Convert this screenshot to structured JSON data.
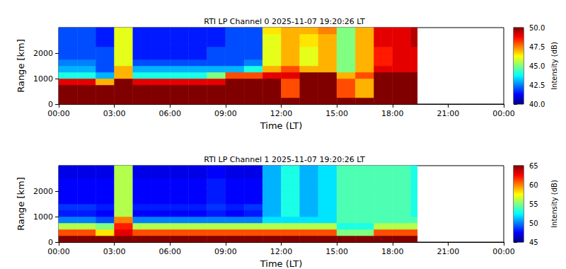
{
  "chart_data": [
    {
      "type": "heatmap",
      "title": "RTI LP Channel 0 2025-11-07 19:20:26 LT",
      "x_label": "Time (LT)",
      "y_label": "Range [km]",
      "xlim": [
        0,
        24
      ],
      "xticks": [
        {
          "value": 0,
          "label": "00:00"
        },
        {
          "value": 3,
          "label": "03:00"
        },
        {
          "value": 6,
          "label": "06:00"
        },
        {
          "value": 9,
          "label": "09:00"
        },
        {
          "value": 12,
          "label": "12:00"
        },
        {
          "value": 15,
          "label": "15:00"
        },
        {
          "value": 18,
          "label": "18:00"
        },
        {
          "value": 21,
          "label": "21:00"
        },
        {
          "value": 24,
          "label": "00:00"
        }
      ],
      "ylim": [
        0,
        3000
      ],
      "yticks": [
        0,
        1000,
        2000
      ],
      "time_edges": [
        0,
        1,
        2,
        3,
        4,
        5,
        6,
        7,
        8,
        9,
        10,
        11,
        12,
        13,
        14,
        15,
        16,
        17,
        18,
        19,
        19.34
      ],
      "range_edges": [
        0,
        250,
        500,
        750,
        1000,
        1250,
        1500,
        1750,
        2000,
        2250,
        2500,
        2750,
        3000
      ],
      "cells": [
        [
          52,
          52,
          52,
          52,
          52,
          52,
          52,
          52,
          52,
          52,
          52,
          52,
          52,
          52,
          52,
          52,
          52,
          52,
          52,
          52
        ],
        [
          52,
          52,
          52,
          52,
          52,
          52,
          52,
          52,
          52,
          52,
          52,
          52,
          48,
          52,
          52,
          48,
          47,
          52,
          52,
          52
        ],
        [
          52,
          52,
          52,
          52,
          52,
          52,
          52,
          52,
          52,
          52,
          52,
          52,
          48,
          52,
          52,
          48,
          47,
          52,
          52,
          52
        ],
        [
          49,
          49,
          47,
          51,
          49,
          49,
          49,
          49,
          49,
          51,
          52,
          52,
          48,
          52,
          52,
          48,
          47,
          52,
          52,
          52
        ],
        [
          44,
          44,
          43,
          47,
          44,
          44,
          44,
          44,
          45,
          48,
          48,
          49,
          49,
          51,
          51,
          47,
          48,
          52,
          52,
          52
        ],
        [
          43,
          43,
          42,
          47,
          43,
          43,
          43,
          43,
          43,
          43,
          44,
          47,
          48,
          47,
          47,
          45,
          47,
          49,
          49,
          49
        ],
        [
          42.5,
          42.5,
          42,
          46,
          42,
          42,
          42,
          42,
          42,
          42,
          42.5,
          46,
          47,
          46,
          47,
          45,
          47,
          48.5,
          49,
          49
        ],
        [
          42,
          42,
          42,
          46,
          41.5,
          41.5,
          41.5,
          41.5,
          42,
          42,
          42,
          46,
          47,
          46,
          47,
          45,
          47,
          48.5,
          49,
          49
        ],
        [
          42,
          42,
          42,
          46,
          41.5,
          41.5,
          41.5,
          41.5,
          42,
          42,
          42,
          46,
          47,
          46,
          47,
          45,
          47,
          48.5,
          49,
          49
        ],
        [
          42,
          42,
          41.5,
          46,
          41.5,
          41.5,
          41.5,
          41.5,
          41.5,
          42,
          42,
          46,
          47,
          46.5,
          47,
          45,
          47,
          49,
          49,
          49.5
        ],
        [
          42,
          42,
          41.5,
          46,
          41.5,
          41.5,
          41.5,
          41.5,
          41.5,
          42,
          42,
          46,
          47,
          46.5,
          47,
          45,
          47,
          49,
          49,
          49.5
        ],
        [
          42,
          42,
          41.5,
          46,
          41.5,
          41.5,
          41.5,
          41.5,
          41.5,
          42,
          42,
          46.5,
          47,
          47,
          47.5,
          45,
          47,
          49,
          49,
          49.5
        ]
      ],
      "colorbar": {
        "label": "Intensity (dB)",
        "lim": [
          40,
          50
        ],
        "ticks": [
          {
            "value": 40,
            "label": "40.0"
          },
          {
            "value": 42.5,
            "label": "42.5"
          },
          {
            "value": 45,
            "label": "45.0"
          },
          {
            "value": 47.5,
            "label": "47.5"
          },
          {
            "value": 50,
            "label": "50.0"
          }
        ]
      }
    },
    {
      "type": "heatmap",
      "title": "RTI LP Channel 1 2025-11-07 19:20:26 LT",
      "x_label": "Time (LT)",
      "y_label": "Range [km]",
      "xlim": [
        0,
        24
      ],
      "xticks": [
        {
          "value": 0,
          "label": "00:00"
        },
        {
          "value": 3,
          "label": "03:00"
        },
        {
          "value": 6,
          "label": "06:00"
        },
        {
          "value": 9,
          "label": "09:00"
        },
        {
          "value": 12,
          "label": "12:00"
        },
        {
          "value": 15,
          "label": "15:00"
        },
        {
          "value": 18,
          "label": "18:00"
        },
        {
          "value": 21,
          "label": "21:00"
        },
        {
          "value": 24,
          "label": "00:00"
        }
      ],
      "ylim": [
        0,
        3000
      ],
      "yticks": [
        0,
        1000,
        2000
      ],
      "time_edges": [
        0,
        1,
        2,
        3,
        4,
        5,
        6,
        7,
        8,
        9,
        10,
        11,
        12,
        13,
        14,
        15,
        16,
        17,
        18,
        19,
        19.34
      ],
      "range_edges": [
        0,
        250,
        500,
        750,
        1000,
        1250,
        1500,
        1750,
        2000,
        2250,
        2500,
        2750,
        3000
      ],
      "cells": [
        [
          67,
          67,
          67,
          67,
          67,
          67,
          67,
          67,
          67,
          67,
          67,
          67,
          67,
          67,
          67,
          67,
          67,
          67,
          67,
          67
        ],
        [
          61,
          61,
          58,
          63,
          61,
          61,
          61,
          61,
          61,
          61,
          61,
          61,
          61,
          61,
          61,
          55,
          55,
          61,
          61,
          61
        ],
        [
          56,
          56,
          55,
          62,
          56,
          56,
          56,
          56,
          56,
          56,
          56,
          56,
          56,
          56,
          56,
          53,
          53,
          56,
          56,
          56
        ],
        [
          50,
          50,
          49,
          60,
          50,
          50,
          50,
          50,
          50,
          50,
          50,
          52,
          52,
          52,
          52,
          54,
          54,
          54,
          54,
          54
        ],
        [
          48,
          48,
          47.5,
          56,
          47.5,
          47.5,
          47.5,
          47.5,
          48,
          47.5,
          48,
          51,
          53,
          51,
          52,
          54,
          54,
          54,
          54,
          53
        ],
        [
          48.5,
          48.5,
          48,
          56,
          48,
          48,
          48,
          48,
          48.5,
          48,
          48.5,
          51,
          53,
          51,
          52,
          54,
          54,
          54,
          54,
          53
        ],
        [
          47.5,
          47.5,
          47.5,
          56,
          47.5,
          47.5,
          47.5,
          47.5,
          48,
          47.5,
          47.5,
          51,
          53,
          51,
          52,
          54,
          54,
          54,
          54,
          53
        ],
        [
          47.5,
          47.5,
          47.5,
          56,
          47.5,
          47.5,
          47.5,
          47.5,
          48,
          47.5,
          47.5,
          51,
          53,
          51,
          52,
          54,
          54,
          54,
          54,
          53
        ],
        [
          47.5,
          47.5,
          47.5,
          56,
          47.5,
          47.5,
          47.5,
          47.5,
          48,
          47.5,
          47.5,
          51,
          53,
          51,
          52,
          54,
          54,
          54,
          54,
          53
        ],
        [
          47.5,
          47.5,
          47.5,
          56,
          47.5,
          47.5,
          47.5,
          47.5,
          48,
          47.5,
          47.5,
          51,
          53,
          51,
          52,
          54,
          54,
          54,
          54,
          53
        ],
        [
          47,
          47,
          47,
          56,
          47,
          47,
          47,
          47,
          47.5,
          47,
          47,
          51,
          53,
          51,
          52,
          54,
          54,
          54,
          54,
          53
        ],
        [
          47,
          47,
          47,
          56,
          47,
          47,
          47,
          47,
          47.5,
          47,
          47,
          51,
          53,
          51,
          52,
          54,
          54,
          54,
          54,
          53
        ]
      ],
      "colorbar": {
        "label": "Intensity (dB)",
        "lim": [
          45,
          65
        ],
        "ticks": [
          45,
          50,
          55,
          60,
          65
        ]
      }
    }
  ]
}
